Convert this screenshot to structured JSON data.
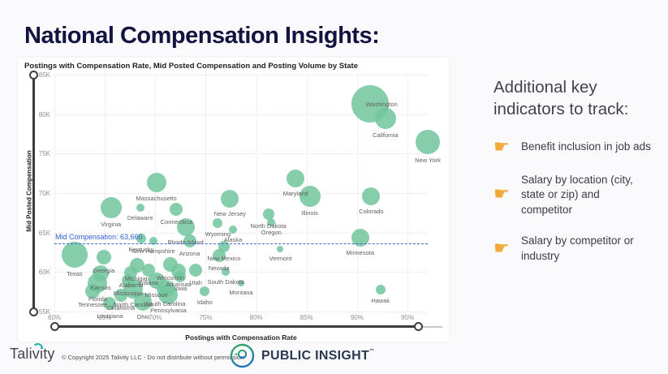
{
  "page": {
    "title": "National Compensation Insights:"
  },
  "chart": {
    "title": "Postings with Compensation Rate, Mid Posted Compensation and Posting Volume by State",
    "y_axis_title": "Mid Posted Compensation",
    "x_axis_title": "Postings with Compensation Rate"
  },
  "chart_data": {
    "type": "scatter",
    "title": "Postings with Compensation Rate, Mid Posted Compensation and Posting Volume by State",
    "xlabel": "Postings with Compensation Rate",
    "ylabel": "Mid Posted Compensation",
    "xlim_pct": [
      60,
      97.5
    ],
    "ylim": [
      55000,
      85000
    ],
    "grid": "dotted",
    "x_ticks": {
      "labels": [
        "60%",
        "65%",
        "70%",
        "75%",
        "80%",
        "85%",
        "90%",
        "95%"
      ],
      "values": [
        60,
        65,
        70,
        75,
        80,
        85,
        90,
        95
      ]
    },
    "y_ticks": {
      "labels": [
        "85K",
        "80K",
        "75K",
        "70K",
        "65K",
        "60K",
        "55K"
      ],
      "values": [
        85,
        80,
        75,
        70,
        65,
        60,
        55
      ]
    },
    "reference_line": {
      "label": "Mid Compensation: 63,660",
      "value": 63660
    },
    "size_encodes": "Posting Volume",
    "points": [
      {
        "state": "Texas",
        "rate_pct": 62.0,
        "mid_comp": 62200,
        "size": 16
      },
      {
        "state": "Georgia",
        "rate_pct": 64.9,
        "mid_comp": 61900,
        "size": 9
      },
      {
        "state": "Kansas",
        "rate_pct": 64.6,
        "mid_comp": 59800,
        "size": 10
      },
      {
        "state": "Florida",
        "rate_pct": 64.3,
        "mid_comp": 58600,
        "size": 12
      },
      {
        "state": "Tennessee",
        "rate_pct": 63.8,
        "mid_comp": 57600,
        "size": 9
      },
      {
        "state": "Virginia",
        "rate_pct": 65.6,
        "mid_comp": 68200,
        "size": 13
      },
      {
        "state": "Delaware",
        "rate_pct": 68.5,
        "mid_comp": 68200,
        "size": 5
      },
      {
        "state": "Massachusetts",
        "rate_pct": 70.1,
        "mid_comp": 71300,
        "size": 12
      },
      {
        "state": "Kentucky",
        "rate_pct": 68.6,
        "mid_comp": 64200,
        "size": 6
      },
      {
        "state": "Michigan",
        "rate_pct": 68.2,
        "mid_comp": 60900,
        "size": 9
      },
      {
        "state": "Alabama",
        "rate_pct": 67.6,
        "mid_comp": 59900,
        "size": 8
      },
      {
        "state": "Mississippi",
        "rate_pct": 67.3,
        "mid_comp": 58900,
        "size": 8
      },
      {
        "state": "North Carolina",
        "rate_pct": 67.8,
        "mid_comp": 57900,
        "size": 12
      },
      {
        "state": "Oklahoma",
        "rate_pct": 66.6,
        "mid_comp": 57100,
        "size": 8
      },
      {
        "state": "Louisiana",
        "rate_pct": 65.5,
        "mid_comp": 56000,
        "size": 8
      },
      {
        "state": "Ohio",
        "rate_pct": 68.8,
        "mid_comp": 56200,
        "size": 11
      },
      {
        "state": "Indiana",
        "rate_pct": 69.3,
        "mid_comp": 60200,
        "size": 8
      },
      {
        "state": "Missouri",
        "rate_pct": 70.1,
        "mid_comp": 58900,
        "size": 10
      },
      {
        "state": "South Carolina",
        "rate_pct": 71.0,
        "mid_comp": 57900,
        "size": 11
      },
      {
        "state": "Pennsylvania",
        "rate_pct": 71.3,
        "mid_comp": 57200,
        "size": 12
      },
      {
        "state": "Arkansas",
        "rate_pct": 72.3,
        "mid_comp": 60100,
        "size": 9
      },
      {
        "state": "Iowa",
        "rate_pct": 72.5,
        "mid_comp": 59400,
        "size": 7
      },
      {
        "state": "Wisconsin",
        "rate_pct": 71.5,
        "mid_comp": 61000,
        "size": 9
      },
      {
        "state": "Connecticut",
        "rate_pct": 72.1,
        "mid_comp": 67900,
        "size": 8
      },
      {
        "state": "Rhode Island",
        "rate_pct": 73.0,
        "mid_comp": 65700,
        "size": 11
      },
      {
        "state": "New Hampshire",
        "rate_pct": 69.8,
        "mid_comp": 63900,
        "size": 5
      },
      {
        "state": "Arizona",
        "rate_pct": 73.4,
        "mid_comp": 63900,
        "size": 8
      },
      {
        "state": "New Mexico",
        "rate_pct": 76.8,
        "mid_comp": 63200,
        "size": 7
      },
      {
        "state": "Nevada",
        "rate_pct": 76.3,
        "mid_comp": 62100,
        "size": 8
      },
      {
        "state": "Utah",
        "rate_pct": 74.0,
        "mid_comp": 60200,
        "size": 8
      },
      {
        "state": "South Dakota",
        "rate_pct": 77.0,
        "mid_comp": 60000,
        "size": 5
      },
      {
        "state": "Montana",
        "rate_pct": 78.5,
        "mid_comp": 58600,
        "size": 4
      },
      {
        "state": "Idaho",
        "rate_pct": 74.9,
        "mid_comp": 57600,
        "size": 6
      },
      {
        "state": "Wyoming",
        "rate_pct": 76.2,
        "mid_comp": 66200,
        "size": 6
      },
      {
        "state": "Alaska",
        "rate_pct": 77.7,
        "mid_comp": 65400,
        "size": 5
      },
      {
        "state": "New Jersey",
        "rate_pct": 77.4,
        "mid_comp": 69300,
        "size": 11
      },
      {
        "state": "North Dakota",
        "rate_pct": 81.2,
        "mid_comp": 67300,
        "size": 7
      },
      {
        "state": "Oregon",
        "rate_pct": 81.5,
        "mid_comp": 66300,
        "size": 5
      },
      {
        "state": "Vermont",
        "rate_pct": 82.4,
        "mid_comp": 62900,
        "size": 4
      },
      {
        "state": "Maryland",
        "rate_pct": 83.9,
        "mid_comp": 71800,
        "size": 11
      },
      {
        "state": "Illinois",
        "rate_pct": 85.3,
        "mid_comp": 69600,
        "size": 13
      },
      {
        "state": "Minnesota",
        "rate_pct": 90.3,
        "mid_comp": 64400,
        "size": 11
      },
      {
        "state": "Colorado",
        "rate_pct": 91.4,
        "mid_comp": 69600,
        "size": 11
      },
      {
        "state": "Washington",
        "rate_pct": 91.3,
        "mid_comp": 81300,
        "size": 23
      },
      {
        "state": "California",
        "rate_pct": 92.8,
        "mid_comp": 79500,
        "size": 13
      },
      {
        "state": "New York",
        "rate_pct": 97.0,
        "mid_comp": 76500,
        "size": 15
      },
      {
        "state": "Hawaii",
        "rate_pct": 92.3,
        "mid_comp": 57800,
        "size": 6
      }
    ]
  },
  "sidebar": {
    "heading": "Additional key indicators to track:",
    "items": [
      {
        "icon": "pointing-hand-icon",
        "text": "Benefit inclusion in job ads"
      },
      {
        "icon": "pointing-hand-icon",
        "text": "Salary by location (city, state or zip) and competitor"
      },
      {
        "icon": "pointing-hand-icon",
        "text": "Salary by competitor or industry"
      }
    ]
  },
  "footer": {
    "talivity_logo": "Talivity",
    "copyright": "© Copyright 2025 Talivity LLC - Do not distribute without permission",
    "public_insight_logo": "PUBLIC INSIGHT",
    "trademark": "™"
  },
  "colors": {
    "title_navy": "#131340",
    "bubble_green": "#74c69e",
    "reference_blue": "#3f6ad8",
    "hand_orange": "#f2a93c",
    "page_bg": "#fafafc"
  },
  "glyphs": {
    "pointing_hand": "☛"
  }
}
